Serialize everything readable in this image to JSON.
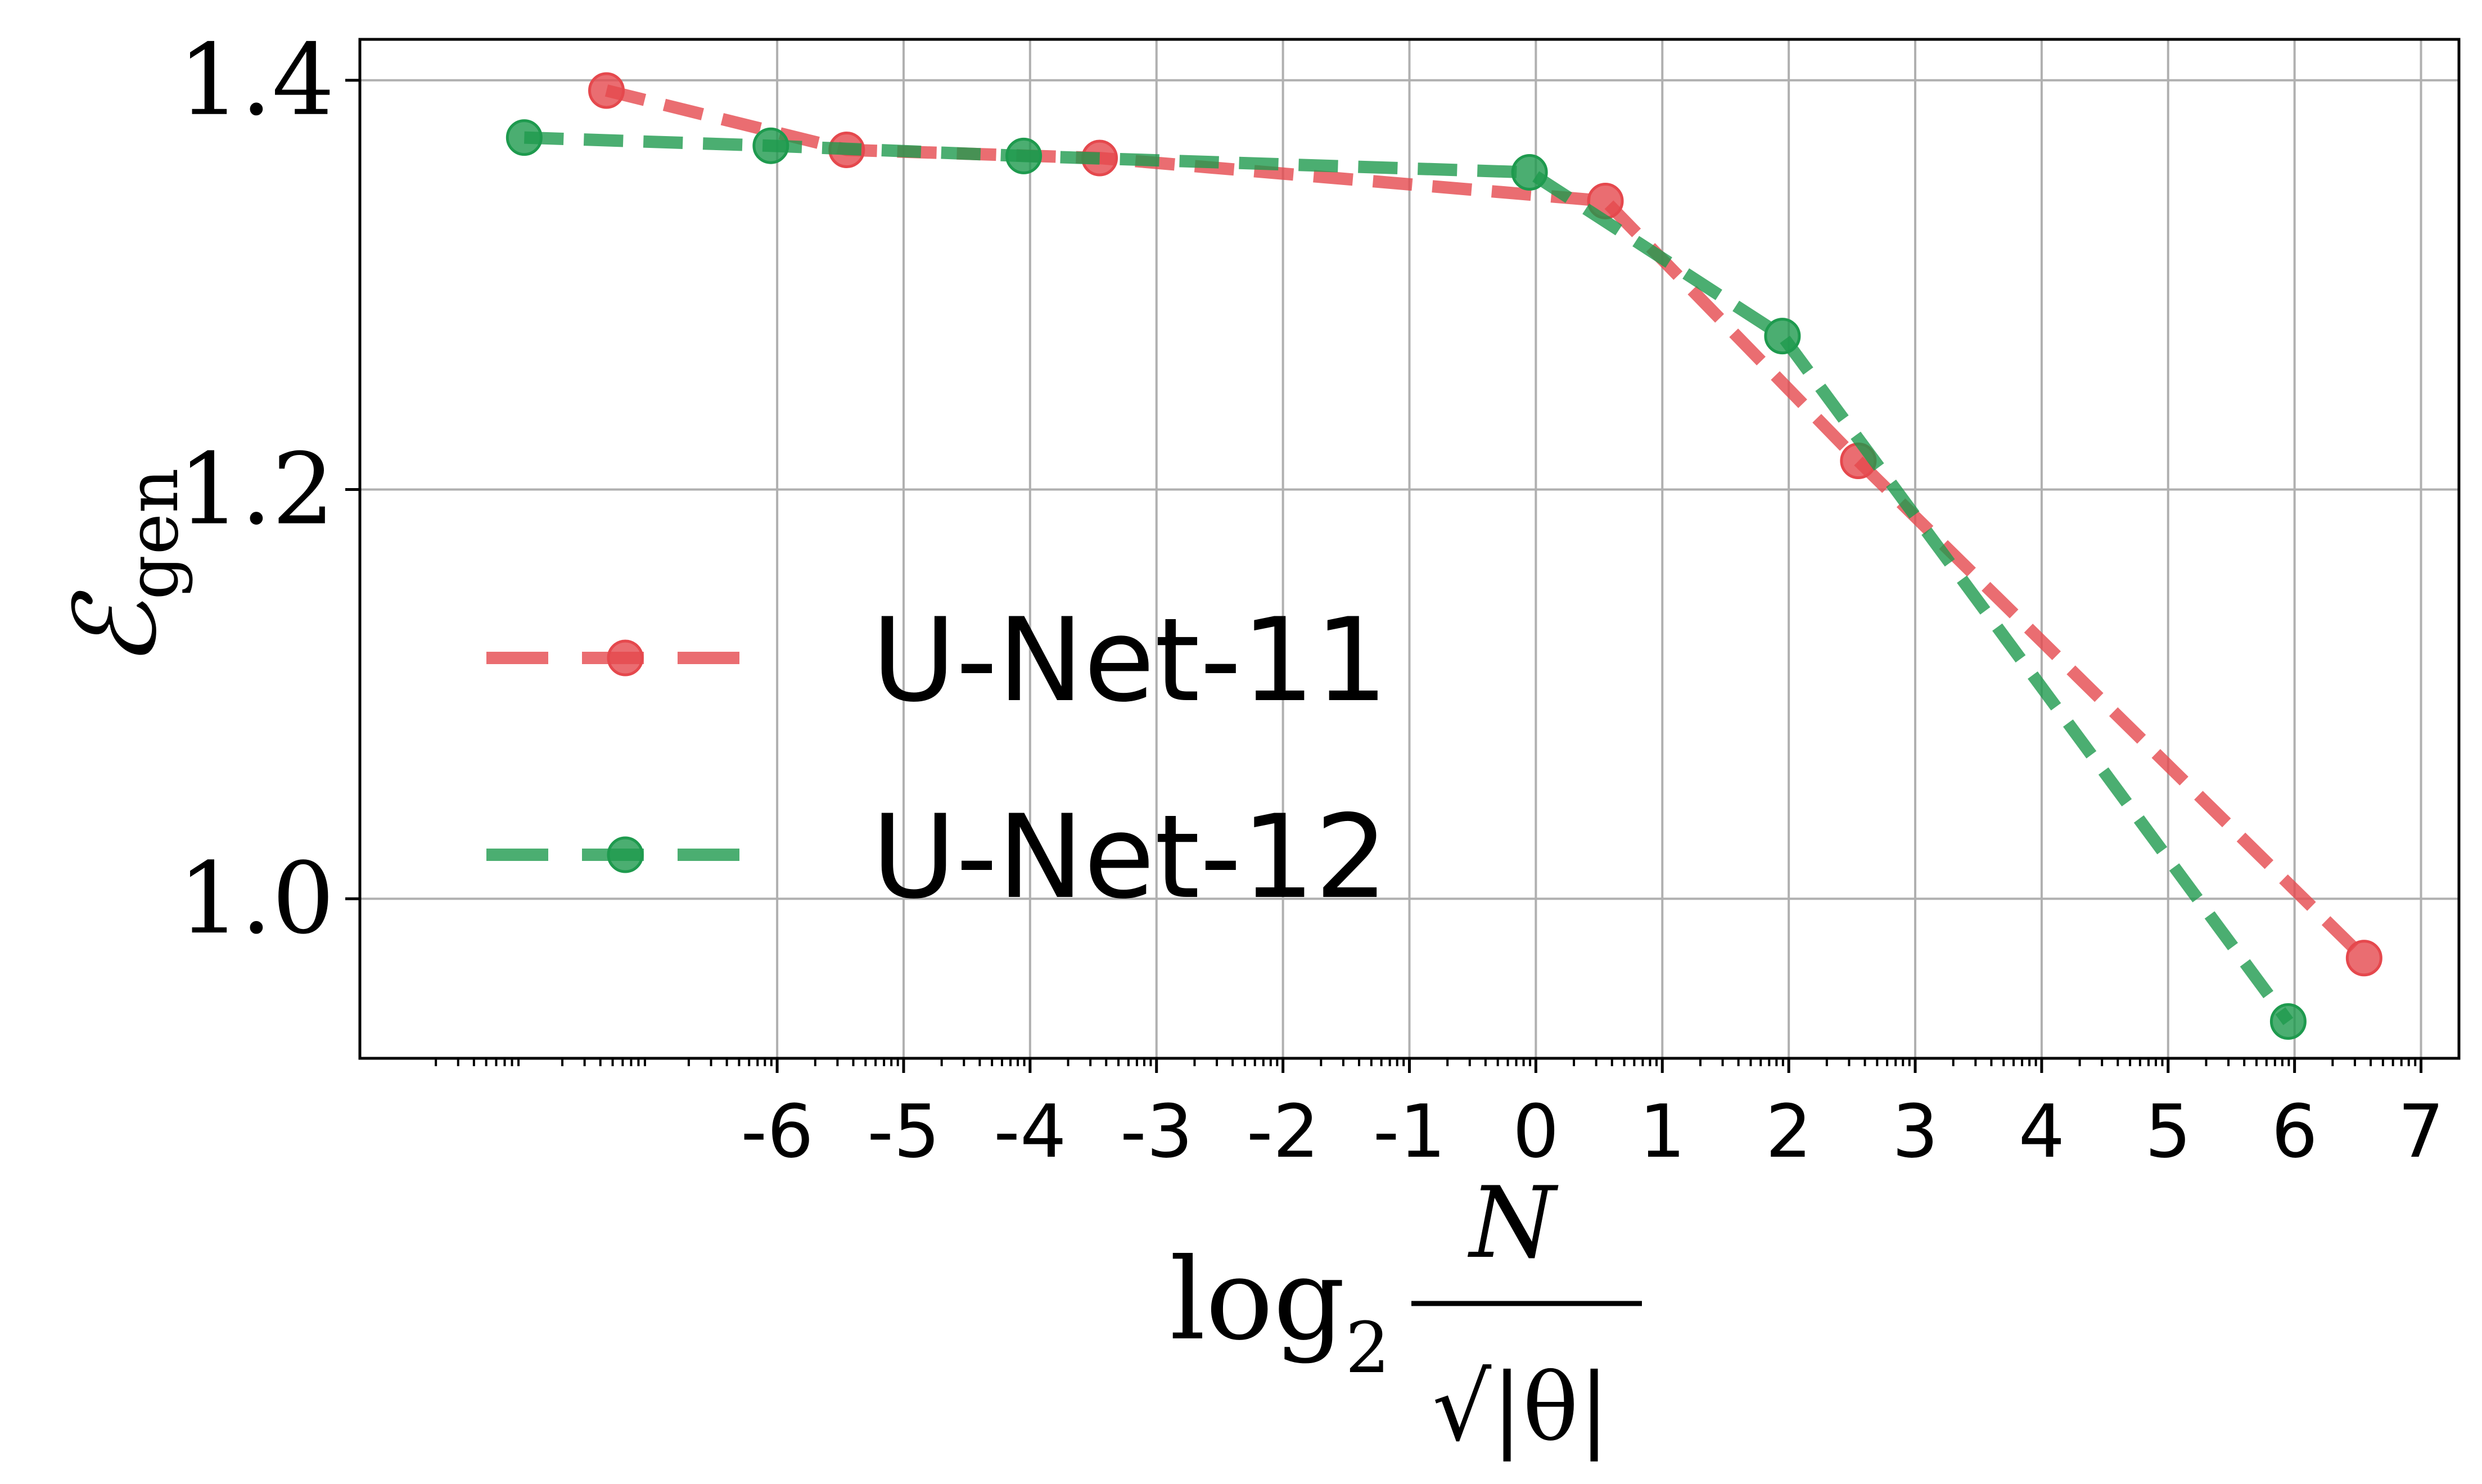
{
  "chart_data": {
    "type": "line",
    "xlabel": "log2 N/√|θ|",
    "ylabel": "ℰgen",
    "xlim": [
      -9.3,
      7.3
    ],
    "ylim": [
      0.922,
      1.42
    ],
    "xticks": [
      -6,
      -5,
      -4,
      -3,
      -2,
      -1,
      0,
      1,
      2,
      3,
      4,
      5,
      6,
      7
    ],
    "xtick_labels": [
      "-6",
      "-5",
      "-4",
      "-3",
      "-2",
      "-1",
      "0",
      "1",
      "2",
      "3",
      "4",
      "5",
      "6",
      "7"
    ],
    "yticks": [
      1.0,
      1.2,
      1.4
    ],
    "ytick_labels": [
      "1.0",
      "1.2",
      "1.4"
    ],
    "grid": true,
    "legend_position": "lower-left",
    "series": [
      {
        "name": "U-Net-11",
        "color": "#e5484d",
        "x": [
          -7.35,
          -5.45,
          -3.45,
          0.55,
          2.55,
          6.55
        ],
        "y": [
          1.395,
          1.366,
          1.362,
          1.341,
          1.214,
          0.971
        ]
      },
      {
        "name": "U-Net-12",
        "color": "#1e9a4e",
        "x": [
          -8.0,
          -6.05,
          -4.05,
          -0.05,
          1.95,
          5.95
        ],
        "y": [
          1.372,
          1.368,
          1.363,
          1.355,
          1.275,
          0.94
        ]
      }
    ]
  }
}
